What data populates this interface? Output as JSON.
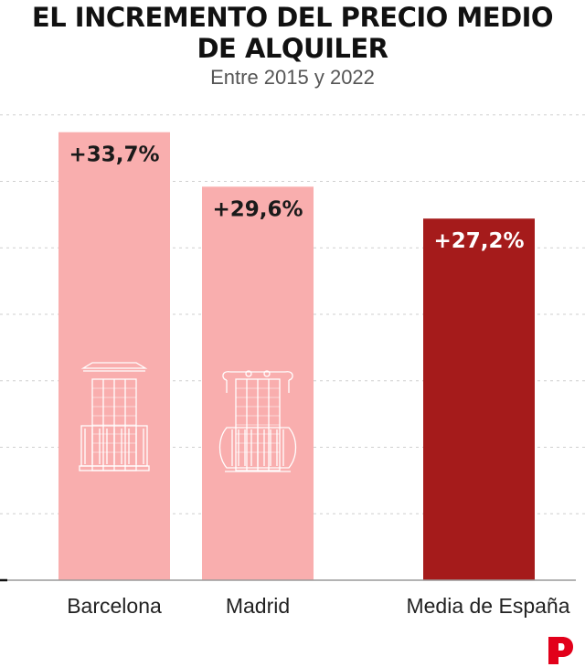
{
  "header": {
    "title_line1": "EL INCREMENTO DEL PRECIO MEDIO",
    "title_line2": "DE ALQUILER",
    "subtitle": "Entre 2015 y 2022"
  },
  "chart_data": {
    "type": "bar",
    "title": "EL INCREMENTO DEL PRECIO MEDIO DE ALQUILER",
    "subtitle": "Entre 2015 y 2022",
    "categories": [
      "Barcelona",
      "Madrid",
      "Media de España"
    ],
    "values": [
      33.7,
      29.6,
      27.2
    ],
    "value_labels": [
      "+33,7%",
      "+29,6%",
      "+27,2%"
    ],
    "unit": "%",
    "ylim": [
      0,
      35
    ],
    "gridlines": [
      5,
      10,
      15,
      20,
      25,
      30,
      35
    ],
    "grid": true,
    "colors": {
      "city_bar": "#f9aeae",
      "average_bar": "#a51b1b",
      "label_on_city": "#1a1a1a",
      "label_on_average": "#ffffff",
      "grid": "#cfcfcf"
    },
    "icons": [
      "barcelona-balcony-icon",
      "madrid-balcony-icon"
    ]
  },
  "brand": {
    "logo_icon": "publisher-logo-icon",
    "color": "#e2001a"
  }
}
